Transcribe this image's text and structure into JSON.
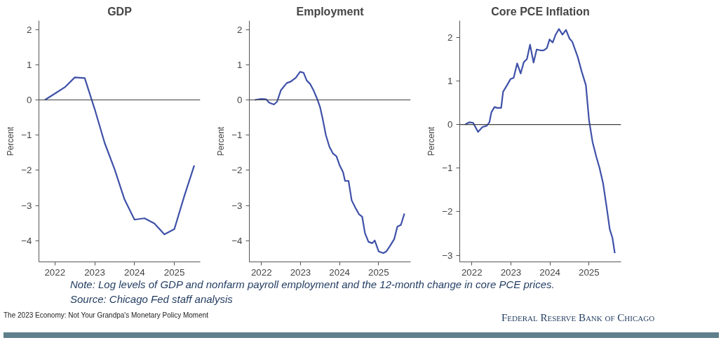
{
  "chart_data": [
    {
      "type": "line",
      "title": "GDP",
      "ylabel": "Percent",
      "xlim": [
        2021.6,
        2025.65
      ],
      "ylim": [
        -4.6,
        2.25
      ],
      "xticks": [
        2022,
        2023,
        2024,
        2025
      ],
      "yticks": [
        -4,
        -3,
        -2,
        -1,
        0,
        1,
        2
      ],
      "grid": false,
      "ref_lines": [
        {
          "axis": "y",
          "value": 0,
          "color": "#404040"
        }
      ],
      "series": [
        {
          "color": "#3f51a8",
          "x": [
            2021.75,
            2022.0,
            2022.25,
            2022.5,
            2022.75,
            2023.0,
            2023.25,
            2023.5,
            2023.75,
            2024.0,
            2024.25,
            2024.5,
            2024.75,
            2025.0,
            2025.25,
            2025.5
          ],
          "values": [
            0,
            0.18,
            0.36,
            0.64,
            0.62,
            -0.26,
            -1.22,
            -1.97,
            -2.83,
            -3.4,
            -3.36,
            -3.51,
            -3.82,
            -3.67,
            -2.73,
            -1.86
          ]
        }
      ],
      "annotations": [
        "Note: Log levels of GDP and nonfarm payroll employment and the 12-month change in core PCE prices.",
        "Source: Chicago Fed staff analysis",
        "The 2023 Economy: Not Your Grandpa's Monetary Policy Moment",
        "Federal Reserve Bank of Chicago"
      ]
    },
    {
      "type": "line",
      "title": "Employment",
      "ylabel": "Percent",
      "xlim": [
        2021.69,
        2025.82
      ],
      "ylim": [
        -4.6,
        2.25
      ],
      "xticks": [
        2022,
        2023,
        2024,
        2025
      ],
      "yticks": [
        -4,
        -3,
        -2,
        -1,
        0,
        1,
        2
      ],
      "grid": false,
      "ref_lines": [
        {
          "axis": "y",
          "value": 0,
          "color": "#404040"
        }
      ],
      "series": [
        {
          "color": "#3f51a8",
          "x": [
            2021.83,
            2022.0,
            2022.12,
            2022.2,
            2022.32,
            2022.4,
            2022.5,
            2022.65,
            2022.75,
            2022.88,
            2022.99,
            2023.08,
            2023.16,
            2023.25,
            2023.33,
            2023.43,
            2023.5,
            2023.57,
            2023.65,
            2023.74,
            2023.83,
            2023.92,
            2024.0,
            2024.09,
            2024.14,
            2024.23,
            2024.31,
            2024.4,
            2024.5,
            2024.58,
            2024.65,
            2024.74,
            2024.84,
            2024.9,
            2025.0,
            2025.12,
            2025.2,
            2025.29,
            2025.4,
            2025.48,
            2025.57,
            2025.66
          ],
          "values": [
            0,
            0.03,
            0.02,
            -0.08,
            -0.13,
            -0.05,
            0.28,
            0.48,
            0.52,
            0.63,
            0.8,
            0.77,
            0.55,
            0.45,
            0.28,
            0.02,
            -0.2,
            -0.55,
            -1.0,
            -1.33,
            -1.52,
            -1.6,
            -1.85,
            -2.05,
            -2.3,
            -2.3,
            -2.85,
            -3.05,
            -3.25,
            -3.32,
            -3.78,
            -4.03,
            -4.07,
            -3.99,
            -4.3,
            -4.35,
            -4.3,
            -4.15,
            -3.95,
            -3.6,
            -3.55,
            -3.23
          ]
        }
      ]
    },
    {
      "type": "line",
      "title": "Core PCE Inflation",
      "ylabel": "Percent",
      "xlim": [
        2021.69,
        2025.82
      ],
      "ylim": [
        -3.15,
        2.38
      ],
      "xticks": [
        2022,
        2023,
        2024,
        2025
      ],
      "yticks": [
        -3,
        -2,
        -1,
        0,
        1,
        2
      ],
      "grid": false,
      "ref_lines": [
        {
          "axis": "y",
          "value": 0,
          "color": "#404040"
        }
      ],
      "series": [
        {
          "color": "#3f51a8",
          "x": [
            2021.83,
            2021.93,
            2022.03,
            2022.16,
            2022.27,
            2022.38,
            2022.45,
            2022.5,
            2022.58,
            2022.65,
            2022.75,
            2022.8,
            2022.9,
            2022.99,
            2023.07,
            2023.16,
            2023.25,
            2023.33,
            2023.41,
            2023.49,
            2023.58,
            2023.66,
            2023.75,
            2023.84,
            2023.92,
            2023.99,
            2024.07,
            2024.14,
            2024.23,
            2024.32,
            2024.41,
            2024.5,
            2024.57,
            2024.71,
            2024.81,
            2024.92,
            2025.0,
            2025.09,
            2025.19,
            2025.27,
            2025.36,
            2025.46,
            2025.53,
            2025.6,
            2025.66
          ],
          "values": [
            0,
            0.05,
            0.04,
            -0.17,
            -0.06,
            -0.03,
            0.05,
            0.28,
            0.4,
            0.38,
            0.38,
            0.75,
            0.9,
            1.04,
            1.07,
            1.4,
            1.17,
            1.43,
            1.5,
            1.83,
            1.42,
            1.72,
            1.7,
            1.7,
            1.75,
            1.95,
            1.88,
            2.05,
            2.19,
            2.06,
            2.17,
            1.97,
            1.9,
            1.55,
            1.22,
            0.9,
            0.1,
            -0.4,
            -0.75,
            -1.0,
            -1.35,
            -1.95,
            -2.4,
            -2.6,
            -2.95
          ]
        }
      ]
    }
  ]
}
